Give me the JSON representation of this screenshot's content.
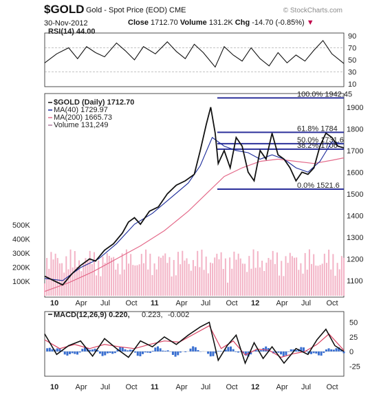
{
  "header": {
    "symbol": "$GOLD",
    "description": "Gold - Spot Price (EOD)",
    "exchange": "CME",
    "brand": "© StockCharts.com",
    "date": "30-Nov-2012",
    "close_label": "Close",
    "close_value": "1712.70",
    "volume_label": "Volume",
    "volume_value": "131.2K",
    "chg_label": "Chg",
    "chg_value": "-14.70 (-0.85%)",
    "chg_arrow": "▼"
  },
  "colors": {
    "price": "#111111",
    "ma40": "#1a2a9a",
    "ma200": "#e46a8a",
    "volume": "#f3b3c6",
    "fib": "#2a2f9a",
    "macd": "#111111",
    "signal": "#d84060",
    "histogram": "#3a6fd0"
  },
  "chart_data": [
    {
      "type": "line",
      "panel": "rsi",
      "title": "RSI(14) 44.00",
      "y_ticks": [
        10,
        30,
        50,
        70,
        90
      ],
      "ylim": [
        10,
        90
      ],
      "reference_lines": [
        30,
        70
      ],
      "last_value": 44.0,
      "points": [
        [
          0,
          45
        ],
        [
          0.04,
          60
        ],
        [
          0.08,
          70
        ],
        [
          0.11,
          52
        ],
        [
          0.14,
          72
        ],
        [
          0.17,
          62
        ],
        [
          0.2,
          55
        ],
        [
          0.24,
          78
        ],
        [
          0.27,
          65
        ],
        [
          0.3,
          50
        ],
        [
          0.33,
          72
        ],
        [
          0.37,
          60
        ],
        [
          0.41,
          80
        ],
        [
          0.44,
          64
        ],
        [
          0.47,
          52
        ],
        [
          0.5,
          76
        ],
        [
          0.53,
          62
        ],
        [
          0.57,
          38
        ],
        [
          0.6,
          72
        ],
        [
          0.63,
          58
        ],
        [
          0.66,
          48
        ],
        [
          0.69,
          70
        ],
        [
          0.72,
          52
        ],
        [
          0.75,
          40
        ],
        [
          0.78,
          62
        ],
        [
          0.81,
          45
        ],
        [
          0.84,
          58
        ],
        [
          0.87,
          48
        ],
        [
          0.9,
          66
        ],
        [
          0.93,
          82
        ],
        [
          0.96,
          60
        ],
        [
          1.0,
          44
        ]
      ]
    },
    {
      "type": "line",
      "panel": "price",
      "title": "$GOLD (Daily) 1712.70",
      "legend": [
        {
          "name": "$GOLD (Daily) 1712.70",
          "key": "price"
        },
        {
          "name": "MA(40) 1729.97",
          "key": "ma40"
        },
        {
          "name": "MA(200) 1665.73",
          "key": "ma200"
        },
        {
          "name": "Volume 131,249",
          "key": "volume"
        }
      ],
      "x_ticks": [
        "10",
        "Apr",
        "Jul",
        "Oct",
        "11",
        "Apr",
        "Jul",
        "Oct",
        "12",
        "Apr",
        "Jul",
        "Oct"
      ],
      "y_ticks": [
        1100,
        1200,
        1300,
        1400,
        1500,
        1600,
        1700,
        1800,
        1900
      ],
      "ylim": [
        1030,
        1950
      ],
      "volume_ticks": [
        "100K",
        "200K",
        "300K",
        "400K",
        "500K"
      ],
      "fib_levels": [
        {
          "label": "100.0% 1942.45",
          "value": 1942.45
        },
        {
          "label": "61.8% 1784",
          "value": 1784
        },
        {
          "label": "50.0% 1731.6",
          "value": 1731.6
        },
        {
          "label": "38.2% 1706",
          "value": 1706
        },
        {
          "label": "0.0% 1521.6",
          "value": 1521.6
        }
      ],
      "price": [
        [
          0,
          1120
        ],
        [
          0.03,
          1100
        ],
        [
          0.06,
          1080
        ],
        [
          0.09,
          1130
        ],
        [
          0.12,
          1170
        ],
        [
          0.15,
          1200
        ],
        [
          0.17,
          1190
        ],
        [
          0.2,
          1240
        ],
        [
          0.23,
          1270
        ],
        [
          0.26,
          1320
        ],
        [
          0.28,
          1370
        ],
        [
          0.3,
          1390
        ],
        [
          0.32,
          1360
        ],
        [
          0.35,
          1420
        ],
        [
          0.38,
          1440
        ],
        [
          0.41,
          1500
        ],
        [
          0.44,
          1540
        ],
        [
          0.47,
          1560
        ],
        [
          0.5,
          1590
        ],
        [
          0.52,
          1700
        ],
        [
          0.54,
          1820
        ],
        [
          0.555,
          1900
        ],
        [
          0.57,
          1780
        ],
        [
          0.58,
          1640
        ],
        [
          0.6,
          1700
        ],
        [
          0.62,
          1620
        ],
        [
          0.64,
          1760
        ],
        [
          0.66,
          1720
        ],
        [
          0.68,
          1600
        ],
        [
          0.7,
          1560
        ],
        [
          0.72,
          1700
        ],
        [
          0.74,
          1660
        ],
        [
          0.76,
          1780
        ],
        [
          0.78,
          1680
        ],
        [
          0.8,
          1660
        ],
        [
          0.82,
          1620
        ],
        [
          0.84,
          1560
        ],
        [
          0.86,
          1600
        ],
        [
          0.88,
          1590
        ],
        [
          0.9,
          1620
        ],
        [
          0.92,
          1720
        ],
        [
          0.94,
          1780
        ],
        [
          0.96,
          1760
        ],
        [
          0.98,
          1720
        ],
        [
          1.0,
          1712
        ]
      ],
      "ma40": [
        [
          0,
          1110
        ],
        [
          0.06,
          1100
        ],
        [
          0.12,
          1160
        ],
        [
          0.18,
          1200
        ],
        [
          0.24,
          1270
        ],
        [
          0.3,
          1360
        ],
        [
          0.36,
          1410
        ],
        [
          0.42,
          1480
        ],
        [
          0.48,
          1550
        ],
        [
          0.52,
          1630
        ],
        [
          0.56,
          1760
        ],
        [
          0.6,
          1720
        ],
        [
          0.64,
          1700
        ],
        [
          0.68,
          1690
        ],
        [
          0.72,
          1660
        ],
        [
          0.76,
          1680
        ],
        [
          0.8,
          1660
        ],
        [
          0.84,
          1620
        ],
        [
          0.88,
          1600
        ],
        [
          0.92,
          1650
        ],
        [
          0.96,
          1740
        ],
        [
          1.0,
          1730
        ]
      ],
      "ma200": [
        [
          0,
          1050
        ],
        [
          0.08,
          1090
        ],
        [
          0.16,
          1140
        ],
        [
          0.24,
          1200
        ],
        [
          0.32,
          1260
        ],
        [
          0.4,
          1330
        ],
        [
          0.48,
          1420
        ],
        [
          0.54,
          1500
        ],
        [
          0.6,
          1580
        ],
        [
          0.66,
          1620
        ],
        [
          0.72,
          1650
        ],
        [
          0.78,
          1660
        ],
        [
          0.84,
          1650
        ],
        [
          0.9,
          1640
        ],
        [
          0.96,
          1655
        ],
        [
          1.0,
          1666
        ]
      ]
    },
    {
      "type": "line",
      "panel": "macd",
      "title": "MACD(12,26,9) 0.220, 0.223, -0.002",
      "legend": [
        {
          "name": "MACD(12,26,9) 0.220",
          "key": "macd"
        },
        {
          "name": "0.223",
          "key": "signal"
        },
        {
          "name": "-0.002",
          "key": "histogram"
        }
      ],
      "x_ticks": [
        "10",
        "Apr",
        "Jul",
        "Oct",
        "11",
        "Apr",
        "Jul",
        "Oct",
        "12",
        "Apr",
        "Jul",
        "Oct"
      ],
      "y_ticks": [
        -25,
        0,
        25,
        50
      ],
      "ylim": [
        -40,
        60
      ],
      "macd": [
        [
          0,
          30
        ],
        [
          0.04,
          -5
        ],
        [
          0.08,
          10
        ],
        [
          0.12,
          18
        ],
        [
          0.16,
          -8
        ],
        [
          0.2,
          22
        ],
        [
          0.24,
          5
        ],
        [
          0.28,
          -10
        ],
        [
          0.32,
          18
        ],
        [
          0.36,
          8
        ],
        [
          0.4,
          25
        ],
        [
          0.44,
          12
        ],
        [
          0.48,
          28
        ],
        [
          0.52,
          42
        ],
        [
          0.55,
          50
        ],
        [
          0.58,
          -15
        ],
        [
          0.61,
          10
        ],
        [
          0.64,
          28
        ],
        [
          0.67,
          -20
        ],
        [
          0.7,
          15
        ],
        [
          0.73,
          -12
        ],
        [
          0.76,
          8
        ],
        [
          0.8,
          -20
        ],
        [
          0.84,
          5
        ],
        [
          0.88,
          -5
        ],
        [
          0.91,
          20
        ],
        [
          0.94,
          38
        ],
        [
          0.97,
          10
        ],
        [
          1.0,
          0
        ]
      ],
      "signal": [
        [
          0,
          20
        ],
        [
          0.05,
          5
        ],
        [
          0.1,
          12
        ],
        [
          0.15,
          5
        ],
        [
          0.2,
          12
        ],
        [
          0.25,
          8
        ],
        [
          0.3,
          5
        ],
        [
          0.35,
          12
        ],
        [
          0.4,
          18
        ],
        [
          0.45,
          16
        ],
        [
          0.5,
          30
        ],
        [
          0.55,
          44
        ],
        [
          0.59,
          5
        ],
        [
          0.63,
          18
        ],
        [
          0.67,
          -6
        ],
        [
          0.71,
          4
        ],
        [
          0.75,
          2
        ],
        [
          0.79,
          -10
        ],
        [
          0.83,
          -4
        ],
        [
          0.87,
          0
        ],
        [
          0.91,
          12
        ],
        [
          0.95,
          30
        ],
        [
          1.0,
          2
        ]
      ]
    }
  ]
}
